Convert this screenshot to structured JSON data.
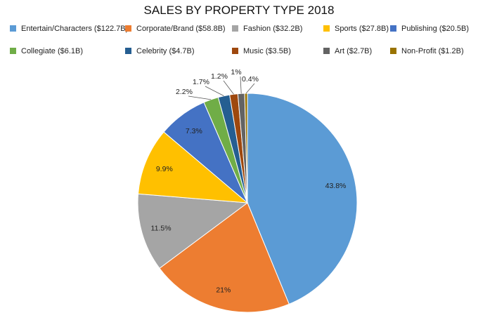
{
  "chart_data": {
    "type": "pie",
    "title": "SALES BY PROPERTY TYPE 2018",
    "slices": [
      {
        "name": "Entertain/Characters ($122.7B)",
        "value": 43.8,
        "label": "43.8%",
        "color": "#5B9BD5"
      },
      {
        "name": "Corporate/Brand ($58.8B)",
        "value": 21.0,
        "label": "21%",
        "color": "#ED7D31"
      },
      {
        "name": "Fashion ($32.2B)",
        "value": 11.5,
        "label": "11.5%",
        "color": "#A5A5A5"
      },
      {
        "name": "Sports ($27.8B)",
        "value": 9.9,
        "label": "9.9%",
        "color": "#FFC000"
      },
      {
        "name": "Publishing ($20.5B)",
        "value": 7.3,
        "label": "7.3%",
        "color": "#4472C4"
      },
      {
        "name": "Collegiate ($6.1B)",
        "value": 2.2,
        "label": "2.2%",
        "color": "#70AD47"
      },
      {
        "name": "Celebrity ($4.7B)",
        "value": 1.7,
        "label": "1.7%",
        "color": "#255E91"
      },
      {
        "name": "Music ($3.5B)",
        "value": 1.2,
        "label": "1.2%",
        "color": "#9E480E"
      },
      {
        "name": "Art ($2.7B)",
        "value": 1.0,
        "label": "1%",
        "color": "#636363"
      },
      {
        "name": "Non-Profit ($1.2B)",
        "value": 0.4,
        "label": "0.4%",
        "color": "#997300"
      }
    ],
    "legend_position": "top"
  }
}
